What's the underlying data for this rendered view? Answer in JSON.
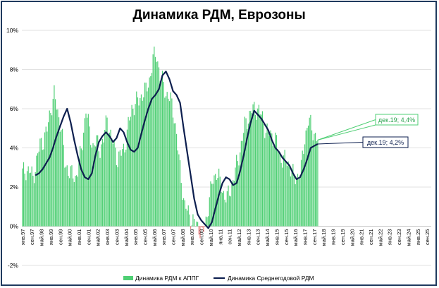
{
  "chart_data": {
    "type": "bar",
    "title": "Динамика РДМ, Еврозоны",
    "xlabel": "",
    "ylabel": "",
    "ylim": [
      -2,
      10
    ],
    "y_ticks": [
      "-2%",
      "0%",
      "2%",
      "4%",
      "6%",
      "8%",
      "10%"
    ],
    "y_tick_values": [
      -2,
      0,
      2,
      4,
      6,
      8,
      10
    ],
    "grid": true,
    "legend_position": "bottom",
    "x_ticks": [
      "янв.97",
      "май.97",
      "сен.97",
      "янв.98",
      "май.98",
      "сен.98",
      "янв.99",
      "май.99",
      "сен.99",
      "янв.00",
      "май.00",
      "сен.00",
      "янв.01",
      "май.01",
      "сен.01",
      "янв.02",
      "май.02",
      "сен.02",
      "янв.03",
      "май.03",
      "сен.03",
      "янв.04",
      "май.04",
      "сен.04",
      "янв.05",
      "май.05",
      "сен.05",
      "янв.06",
      "май.06",
      "сен.06",
      "янв.07",
      "май.07",
      "сен.07",
      "янв.08",
      "май.08",
      "сен.08",
      "янв.09",
      "май.09",
      "сен.09",
      "янв.10",
      "май.10",
      "сен.10",
      "янв.11",
      "май.11",
      "сен.11",
      "янв.12",
      "май.12",
      "сен.12",
      "янв.13",
      "май.13",
      "сен.13",
      "янв.14",
      "май.14",
      "сен.14",
      "янв.15",
      "май.15",
      "сен.15",
      "янв.16",
      "май.16",
      "сен.16",
      "янв.17",
      "май.17",
      "сен.17",
      "янв.18",
      "май.18",
      "сен.18",
      "янв.19",
      "май.19",
      "сен.19",
      "янв.20",
      "май.20",
      "сен.20",
      "янв.21",
      "май.21",
      "сен.21",
      "янв.22",
      "май.22",
      "сен.22",
      "янв.23",
      "май.23",
      "сен.23",
      "янв.24",
      "май.24",
      "сен.24",
      "янв.25",
      "май.25",
      "сен.25"
    ],
    "x_labels_shown": [
      "янв.97",
      "сен.97",
      "май.98",
      "янв.99",
      "сен.99",
      "май.00",
      "янв.01",
      "сен.01",
      "май.02",
      "янв.03",
      "сен.03",
      "май.04",
      "янв.05",
      "сен.05",
      "май.06",
      "янв.07",
      "сен.07",
      "май.08",
      "янв.09",
      "сен.09",
      "май.10",
      "янв.11",
      "сен.11",
      "май.12",
      "янв.13",
      "сен.13",
      "май.14",
      "янв.15",
      "сен.15",
      "май.16",
      "янв.17",
      "сен.17",
      "май.18",
      "янв.19",
      "сен.19",
      "май.20",
      "янв.21",
      "сен.21",
      "май.22",
      "янв.23",
      "сен.23",
      "май.24",
      "янв.25",
      "сен.25"
    ],
    "x_start": "янв.97",
    "x_end": "дек.25",
    "series": [
      {
        "name": "Динамика РДМ к АППГ",
        "type": "bar",
        "color": "#4fcf74",
        "negative_color": "#f08080",
        "anchors_month_value": [
          [
            0,
            2.7
          ],
          [
            3,
            2.9
          ],
          [
            6,
            2.8
          ],
          [
            9,
            2.5
          ],
          [
            12,
            3.3
          ],
          [
            15,
            4.2
          ],
          [
            18,
            4.4
          ],
          [
            21,
            4.9
          ],
          [
            24,
            6.0
          ],
          [
            27,
            6.7
          ],
          [
            30,
            5.8
          ],
          [
            33,
            5.1
          ],
          [
            36,
            3.2
          ],
          [
            39,
            2.9
          ],
          [
            42,
            2.6
          ],
          [
            45,
            2.5
          ],
          [
            48,
            3.1
          ],
          [
            51,
            4.3
          ],
          [
            54,
            6.0
          ],
          [
            57,
            4.8
          ],
          [
            60,
            4.1
          ],
          [
            63,
            4.3
          ],
          [
            66,
            4.0
          ],
          [
            69,
            4.4
          ],
          [
            72,
            5.6
          ],
          [
            75,
            4.6
          ],
          [
            78,
            4.1
          ],
          [
            81,
            3.4
          ],
          [
            84,
            3.7
          ],
          [
            87,
            4.1
          ],
          [
            90,
            5.1
          ],
          [
            93,
            6.0
          ],
          [
            96,
            6.3
          ],
          [
            99,
            6.4
          ],
          [
            102,
            6.8
          ],
          [
            105,
            6.9
          ],
          [
            108,
            7.5
          ],
          [
            111,
            8.5
          ],
          [
            114,
            8.8
          ],
          [
            117,
            7.7
          ],
          [
            120,
            7.2
          ],
          [
            123,
            6.7
          ],
          [
            126,
            6.4
          ],
          [
            129,
            5.7
          ],
          [
            132,
            4.0
          ],
          [
            135,
            2.4
          ],
          [
            138,
            1.0
          ],
          [
            141,
            0.7
          ],
          [
            144,
            0.3
          ],
          [
            147,
            0.1
          ],
          [
            150,
            0.0
          ],
          [
            153,
            -0.5
          ],
          [
            156,
            0.3
          ],
          [
            159,
            1.4
          ],
          [
            162,
            2.4
          ],
          [
            165,
            2.8
          ],
          [
            168,
            2.2
          ],
          [
            171,
            1.7
          ],
          [
            174,
            1.4
          ],
          [
            177,
            1.9
          ],
          [
            180,
            2.6
          ],
          [
            183,
            3.3
          ],
          [
            186,
            4.2
          ],
          [
            189,
            5.1
          ],
          [
            192,
            5.6
          ],
          [
            195,
            5.9
          ],
          [
            198,
            6.0
          ],
          [
            201,
            5.9
          ],
          [
            204,
            5.5
          ],
          [
            207,
            4.9
          ],
          [
            210,
            4.7
          ],
          [
            213,
            4.6
          ],
          [
            216,
            4.3
          ],
          [
            219,
            3.6
          ],
          [
            222,
            3.4
          ],
          [
            225,
            3.3
          ],
          [
            228,
            3.0
          ],
          [
            231,
            2.4
          ],
          [
            234,
            2.6
          ],
          [
            237,
            2.9
          ],
          [
            240,
            4.5
          ],
          [
            243,
            5.4
          ],
          [
            246,
            5.0
          ],
          [
            251,
            4.4
          ]
        ],
        "last_value": 4.4
      },
      {
        "name": "Динамика Среднегодовой РДМ",
        "type": "line",
        "color": "#0d1f4f",
        "anchors_month_value": [
          [
            11,
            2.6
          ],
          [
            14,
            2.7
          ],
          [
            17,
            2.9
          ],
          [
            20,
            3.2
          ],
          [
            23,
            3.5
          ],
          [
            26,
            4.0
          ],
          [
            29,
            4.6
          ],
          [
            32,
            5.1
          ],
          [
            35,
            5.6
          ],
          [
            38,
            6.0
          ],
          [
            41,
            5.3
          ],
          [
            44,
            4.4
          ],
          [
            47,
            3.6
          ],
          [
            50,
            2.9
          ],
          [
            53,
            2.5
          ],
          [
            56,
            2.4
          ],
          [
            59,
            2.7
          ],
          [
            62,
            3.6
          ],
          [
            65,
            4.3
          ],
          [
            68,
            4.6
          ],
          [
            71,
            4.8
          ],
          [
            74,
            4.6
          ],
          [
            77,
            4.3
          ],
          [
            80,
            4.5
          ],
          [
            83,
            5.0
          ],
          [
            86,
            4.8
          ],
          [
            89,
            4.3
          ],
          [
            92,
            3.9
          ],
          [
            95,
            3.8
          ],
          [
            98,
            4.0
          ],
          [
            101,
            4.7
          ],
          [
            104,
            5.4
          ],
          [
            107,
            6.0
          ],
          [
            110,
            6.5
          ],
          [
            113,
            6.7
          ],
          [
            116,
            7.0
          ],
          [
            119,
            7.7
          ],
          [
            122,
            7.9
          ],
          [
            125,
            7.5
          ],
          [
            128,
            6.9
          ],
          [
            131,
            6.7
          ],
          [
            134,
            6.3
          ],
          [
            137,
            5.0
          ],
          [
            140,
            3.8
          ],
          [
            143,
            2.6
          ],
          [
            146,
            1.4
          ],
          [
            149,
            0.6
          ],
          [
            152,
            0.3
          ],
          [
            155,
            0.1
          ],
          [
            158,
            -0.1
          ],
          [
            161,
            0.2
          ],
          [
            164,
            0.9
          ],
          [
            167,
            1.6
          ],
          [
            170,
            2.2
          ],
          [
            173,
            2.5
          ],
          [
            176,
            2.4
          ],
          [
            179,
            2.1
          ],
          [
            182,
            2.2
          ],
          [
            185,
            2.8
          ],
          [
            188,
            3.6
          ],
          [
            191,
            4.5
          ],
          [
            194,
            5.3
          ],
          [
            197,
            5.9
          ],
          [
            200,
            5.7
          ],
          [
            203,
            5.5
          ],
          [
            206,
            5.2
          ],
          [
            209,
            4.9
          ],
          [
            212,
            4.4
          ],
          [
            215,
            4.0
          ],
          [
            218,
            3.8
          ],
          [
            221,
            3.5
          ],
          [
            224,
            3.3
          ],
          [
            227,
            3.1
          ],
          [
            230,
            2.7
          ],
          [
            233,
            2.4
          ],
          [
            236,
            2.5
          ],
          [
            239,
            2.9
          ],
          [
            242,
            3.4
          ],
          [
            245,
            4.0
          ],
          [
            251,
            4.2
          ]
        ],
        "last_value": 4.2
      }
    ],
    "annotations": [
      {
        "text": "дек.19; 4,4%",
        "series": "Динамика РДМ к АППГ",
        "color": "#4fcf74"
      },
      {
        "text": "дек.19; 4,2%",
        "series": "Динамика Среднегодовой РДМ",
        "color": "#0d1f4f"
      }
    ]
  }
}
